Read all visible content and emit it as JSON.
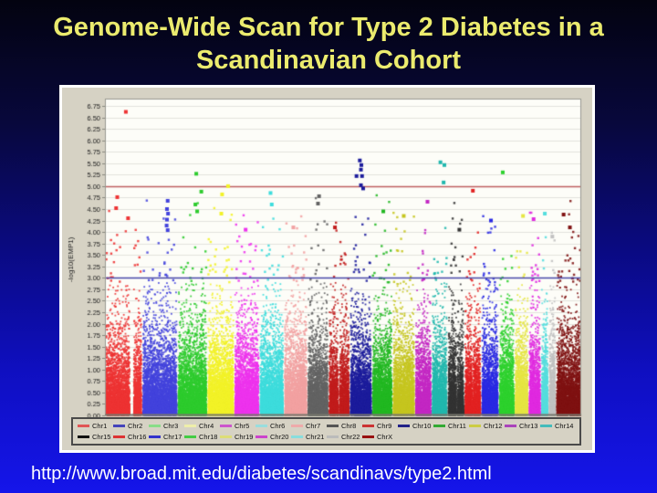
{
  "slide": {
    "title": "Genome-Wide Scan for Type 2 Diabetes in a Scandinavian Cohort",
    "url": "http://www.broad.mit.edu/diabetes/scandinavs/type2.html",
    "title_color": "#ebeb6e",
    "url_color": "#ffffff",
    "background_stops": [
      "#030310",
      "#08083c",
      "#0a0a80",
      "#0f0fc0",
      "#1515ea"
    ]
  },
  "chart_data": {
    "type": "scatter",
    "subtype": "manhattan-plot",
    "ylabel": "-log10(EMP1)",
    "xlabel": "",
    "ylim": [
      0,
      6.9
    ],
    "ytick_step": 0.25,
    "yticks": [
      "0.00",
      "0.25",
      "0.50",
      "0.75",
      "1.00",
      "1.25",
      "1.50",
      "1.75",
      "2.00",
      "2.25",
      "2.50",
      "2.75",
      "3.00",
      "3.25",
      "3.50",
      "3.75",
      "4.00",
      "4.25",
      "4.50",
      "4.75",
      "5.00",
      "5.25",
      "5.50",
      "5.75",
      "6.00",
      "6.25",
      "6.50",
      "6.75"
    ],
    "grid": "horizontal",
    "grid_color": "#e3e3de",
    "plot_bg": "#fdfdf8",
    "panel_bg": "#d6d2c4",
    "axis_color": "#999990",
    "tick_label_color": "#222222",
    "threshold_lines": [
      {
        "value": 5.0,
        "color": "#c06060"
      },
      {
        "value": 3.0,
        "color": "#4848a8"
      }
    ],
    "legend_position": "bottom",
    "legend_row_split": 14,
    "chromosomes": [
      {
        "name": "Chr1",
        "color": "#ee3333",
        "legend_color": "#e05555",
        "weight": 293,
        "gap": [
          0.67,
          0.79
        ]
      },
      {
        "name": "Chr2",
        "color": "#4343dd",
        "legend_color": "#4444bb",
        "weight": 277
      },
      {
        "name": "Chr3",
        "color": "#2ecc2e",
        "legend_color": "#88dd88",
        "weight": 233
      },
      {
        "name": "Chr4",
        "color": "#f2f228",
        "legend_color": "#eeeeaa",
        "weight": 212
      },
      {
        "name": "Chr5",
        "color": "#ee33ee",
        "legend_color": "#cc55cc",
        "weight": 198
      },
      {
        "name": "Chr6",
        "color": "#3ddddd",
        "legend_color": "#99dddd",
        "weight": 192
      },
      {
        "name": "Chr7",
        "color": "#f2a2a2",
        "legend_color": "#eeaaaa",
        "weight": 184
      },
      {
        "name": "Chr8",
        "color": "#636363",
        "legend_color": "#555555",
        "weight": 166
      },
      {
        "name": "Chr9",
        "color": "#c21c1c",
        "legend_color": "#cc3333",
        "weight": 167,
        "gap": [
          0.44,
          0.52
        ]
      },
      {
        "name": "Chr10",
        "color": "#1c1c9c",
        "legend_color": "#222288",
        "weight": 174
      },
      {
        "name": "Chr11",
        "color": "#22b822",
        "legend_color": "#33aa33",
        "weight": 161
      },
      {
        "name": "Chr12",
        "color": "#c6c620",
        "legend_color": "#cccc44",
        "weight": 176
      },
      {
        "name": "Chr13",
        "color": "#c428c4",
        "legend_color": "#aa44bb",
        "weight": 131
      },
      {
        "name": "Chr14",
        "color": "#22b8ae",
        "legend_color": "#44bbbb",
        "weight": 125
      },
      {
        "name": "Chr15",
        "color": "#333333",
        "legend_color": "#111111",
        "weight": 132,
        "gap": [
          0.52,
          0.6
        ]
      },
      {
        "name": "Chr16",
        "color": "#e22222",
        "legend_color": "#dd3333",
        "weight": 133,
        "gap": [
          0.45,
          0.52
        ]
      },
      {
        "name": "Chr17",
        "color": "#2a2ae2",
        "legend_color": "#3333cc",
        "weight": 137
      },
      {
        "name": "Chr18",
        "color": "#2ed22e",
        "legend_color": "#44cc44",
        "weight": 124
      },
      {
        "name": "Chr19",
        "color": "#e6e642",
        "legend_color": "#dddd77",
        "weight": 110
      },
      {
        "name": "Chr20",
        "color": "#e02ae0",
        "legend_color": "#cc44cc",
        "weight": 97
      },
      {
        "name": "Chr21",
        "color": "#55dede",
        "legend_color": "#88dddd",
        "weight": 60
      },
      {
        "name": "Chr22",
        "color": "#c2c2c2",
        "legend_color": "#bbbbbb",
        "weight": 58
      },
      {
        "name": "ChrX",
        "color": "#801212",
        "legend_color": "#991111",
        "weight": 198
      }
    ],
    "notable_points": [
      {
        "chr": "Chr1",
        "pos": 0.56,
        "value": 6.62
      },
      {
        "chr": "Chr1",
        "pos": 0.33,
        "value": 4.76
      },
      {
        "chr": "Chr1",
        "pos": 0.3,
        "value": 4.52
      },
      {
        "chr": "Chr1",
        "pos": 0.62,
        "value": 4.3
      },
      {
        "chr": "Chr2",
        "pos": 0.72,
        "value": 4.68
      },
      {
        "chr": "Chr2",
        "pos": 0.7,
        "value": 4.5
      },
      {
        "chr": "Chr2",
        "pos": 0.73,
        "value": 4.4
      },
      {
        "chr": "Chr2",
        "pos": 0.7,
        "value": 4.27
      },
      {
        "chr": "Chr2",
        "pos": 0.69,
        "value": 4.14
      },
      {
        "chr": "Chr2",
        "pos": 0.72,
        "value": 4.04
      },
      {
        "chr": "Chr3",
        "pos": 0.63,
        "value": 5.27
      },
      {
        "chr": "Chr3",
        "pos": 0.8,
        "value": 4.88
      },
      {
        "chr": "Chr3",
        "pos": 0.6,
        "value": 4.6
      },
      {
        "chr": "Chr3",
        "pos": 0.66,
        "value": 4.45
      },
      {
        "chr": "Chr4",
        "pos": 0.77,
        "value": 5.0
      },
      {
        "chr": "Chr4",
        "pos": 0.55,
        "value": 4.82
      },
      {
        "chr": "Chr4",
        "pos": 0.52,
        "value": 4.4
      },
      {
        "chr": "Chr5",
        "pos": 0.45,
        "value": 4.05
      },
      {
        "chr": "Chr6",
        "pos": 0.45,
        "value": 4.85
      },
      {
        "chr": "Chr6",
        "pos": 0.5,
        "value": 4.6
      },
      {
        "chr": "Chr7",
        "pos": 0.4,
        "value": 4.1
      },
      {
        "chr": "Chr8",
        "pos": 0.55,
        "value": 4.78
      },
      {
        "chr": "Chr8",
        "pos": 0.5,
        "value": 4.62
      },
      {
        "chr": "Chr9",
        "pos": 0.3,
        "value": 4.1
      },
      {
        "chr": "Chr10",
        "pos": 0.45,
        "value": 5.56
      },
      {
        "chr": "Chr10",
        "pos": 0.52,
        "value": 5.46
      },
      {
        "chr": "Chr10",
        "pos": 0.5,
        "value": 5.36
      },
      {
        "chr": "Chr10",
        "pos": 0.3,
        "value": 5.22
      },
      {
        "chr": "Chr10",
        "pos": 0.55,
        "value": 5.22
      },
      {
        "chr": "Chr10",
        "pos": 0.5,
        "value": 5.02
      },
      {
        "chr": "Chr10",
        "pos": 0.6,
        "value": 4.95
      },
      {
        "chr": "Chr11",
        "pos": 0.55,
        "value": 4.45
      },
      {
        "chr": "Chr12",
        "pos": 0.5,
        "value": 4.35
      },
      {
        "chr": "Chr13",
        "pos": 0.75,
        "value": 4.66
      },
      {
        "chr": "Chr14",
        "pos": 0.55,
        "value": 5.52
      },
      {
        "chr": "Chr14",
        "pos": 0.8,
        "value": 5.46
      },
      {
        "chr": "Chr14",
        "pos": 0.75,
        "value": 5.08
      },
      {
        "chr": "Chr15",
        "pos": 0.7,
        "value": 4.05
      },
      {
        "chr": "Chr16",
        "pos": 0.5,
        "value": 4.9
      },
      {
        "chr": "Chr17",
        "pos": 0.55,
        "value": 4.25
      },
      {
        "chr": "Chr18",
        "pos": 0.25,
        "value": 5.3
      },
      {
        "chr": "Chr19",
        "pos": 0.6,
        "value": 4.35
      },
      {
        "chr": "Chr20",
        "pos": 0.4,
        "value": 4.28
      },
      {
        "chr": "Chr21",
        "pos": 0.5,
        "value": 4.4
      },
      {
        "chr": "Chr22",
        "pos": 0.5,
        "value": 3.9
      },
      {
        "chr": "ChrX",
        "pos": 0.3,
        "value": 4.38
      },
      {
        "chr": "ChrX",
        "pos": 0.55,
        "value": 4.1
      }
    ]
  }
}
